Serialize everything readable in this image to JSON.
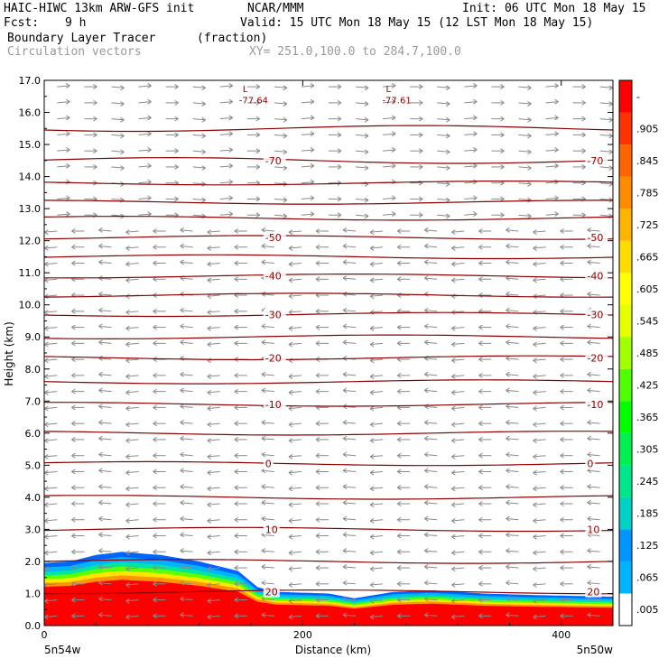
{
  "header": {
    "model": "HAIC-HIWC 13km ARW-GFS init",
    "org": "NCAR/MMM",
    "init": "Init: 06 UTC Mon 18 May 15",
    "fcst_label": "Fcst:",
    "fcst_value": "9 h",
    "valid": "Valid: 15 UTC Mon 18 May 15 (12 LST Mon 18 May 15)",
    "field_name": "Boundary Layer Tracer",
    "field_units": "(fraction)",
    "vector_name": "Circulation vectors",
    "xy_range": "XY= 251.0,100.0 to 284.7,100.0"
  },
  "chart_data": {
    "type": "heatmap",
    "xlabel": "Distance (km)",
    "ylabel": "Height (km)",
    "xlim": [
      0,
      440
    ],
    "ylim": [
      0,
      17
    ],
    "x_ticks": [
      0,
      200,
      400
    ],
    "y_ticks": [
      "0.0",
      "1.0",
      "2.0",
      "3.0",
      "4.0",
      "5.0",
      "6.0",
      "7.0",
      "8.0",
      "9.0",
      "10.0",
      "11.0",
      "12.0",
      "13.0",
      "14.0",
      "15.0",
      "16.0",
      "17.0"
    ],
    "x_end_labels": [
      "5n54w",
      "5n50w"
    ],
    "colorbar": {
      "labels": [
        ".005",
        ".065",
        ".125",
        ".185",
        ".245",
        ".305",
        ".365",
        ".425",
        ".485",
        ".545",
        ".605",
        ".665",
        ".725",
        ".785",
        ".845",
        ".905",
        "-"
      ],
      "colors": [
        "#ffffff",
        "#00b4ff",
        "#0096ff",
        "#00d2c8",
        "#00e68c",
        "#00f050",
        "#00ff00",
        "#50ff00",
        "#a0ff00",
        "#e6ff00",
        "#ffff00",
        "#ffdc00",
        "#ffb400",
        "#ff8c00",
        "#ff6400",
        "#ff3200",
        "#ff0000"
      ]
    },
    "boundary_layer_top": [
      {
        "x": 0,
        "y": 1.95
      },
      {
        "x": 20,
        "y": 2.0
      },
      {
        "x": 40,
        "y": 2.2
      },
      {
        "x": 60,
        "y": 2.3
      },
      {
        "x": 90,
        "y": 2.2
      },
      {
        "x": 120,
        "y": 2.0
      },
      {
        "x": 150,
        "y": 1.7
      },
      {
        "x": 165,
        "y": 1.2
      },
      {
        "x": 180,
        "y": 1.05
      },
      {
        "x": 220,
        "y": 1.0
      },
      {
        "x": 240,
        "y": 0.85
      },
      {
        "x": 270,
        "y": 1.05
      },
      {
        "x": 300,
        "y": 1.1
      },
      {
        "x": 340,
        "y": 1.0
      },
      {
        "x": 380,
        "y": 0.95
      },
      {
        "x": 440,
        "y": 0.9
      }
    ],
    "temperature_contours": [
      {
        "label": "20",
        "y": 1.05
      },
      {
        "label": "10",
        "y": 3.0
      },
      {
        "label": "0",
        "y": 5.05
      },
      {
        "label": "-10",
        "y": 6.9
      },
      {
        "label": "-20",
        "y": 8.35
      },
      {
        "label": "-30",
        "y": 9.7
      },
      {
        "label": "-40",
        "y": 10.9
      },
      {
        "label": "-50",
        "y": 12.1
      },
      {
        "label": "-70",
        "y": 14.5
      }
    ],
    "unlabeled_contour_heights": [
      2.0,
      4.0,
      6.0,
      7.6,
      9.0,
      10.3,
      11.5,
      12.7,
      13.2,
      13.8,
      15.5
    ],
    "lows": [
      {
        "marker": "L",
        "value": "-77.64",
        "x": 115
      },
      {
        "marker": "L",
        "value": "-77.61",
        "x": 198
      }
    ]
  }
}
